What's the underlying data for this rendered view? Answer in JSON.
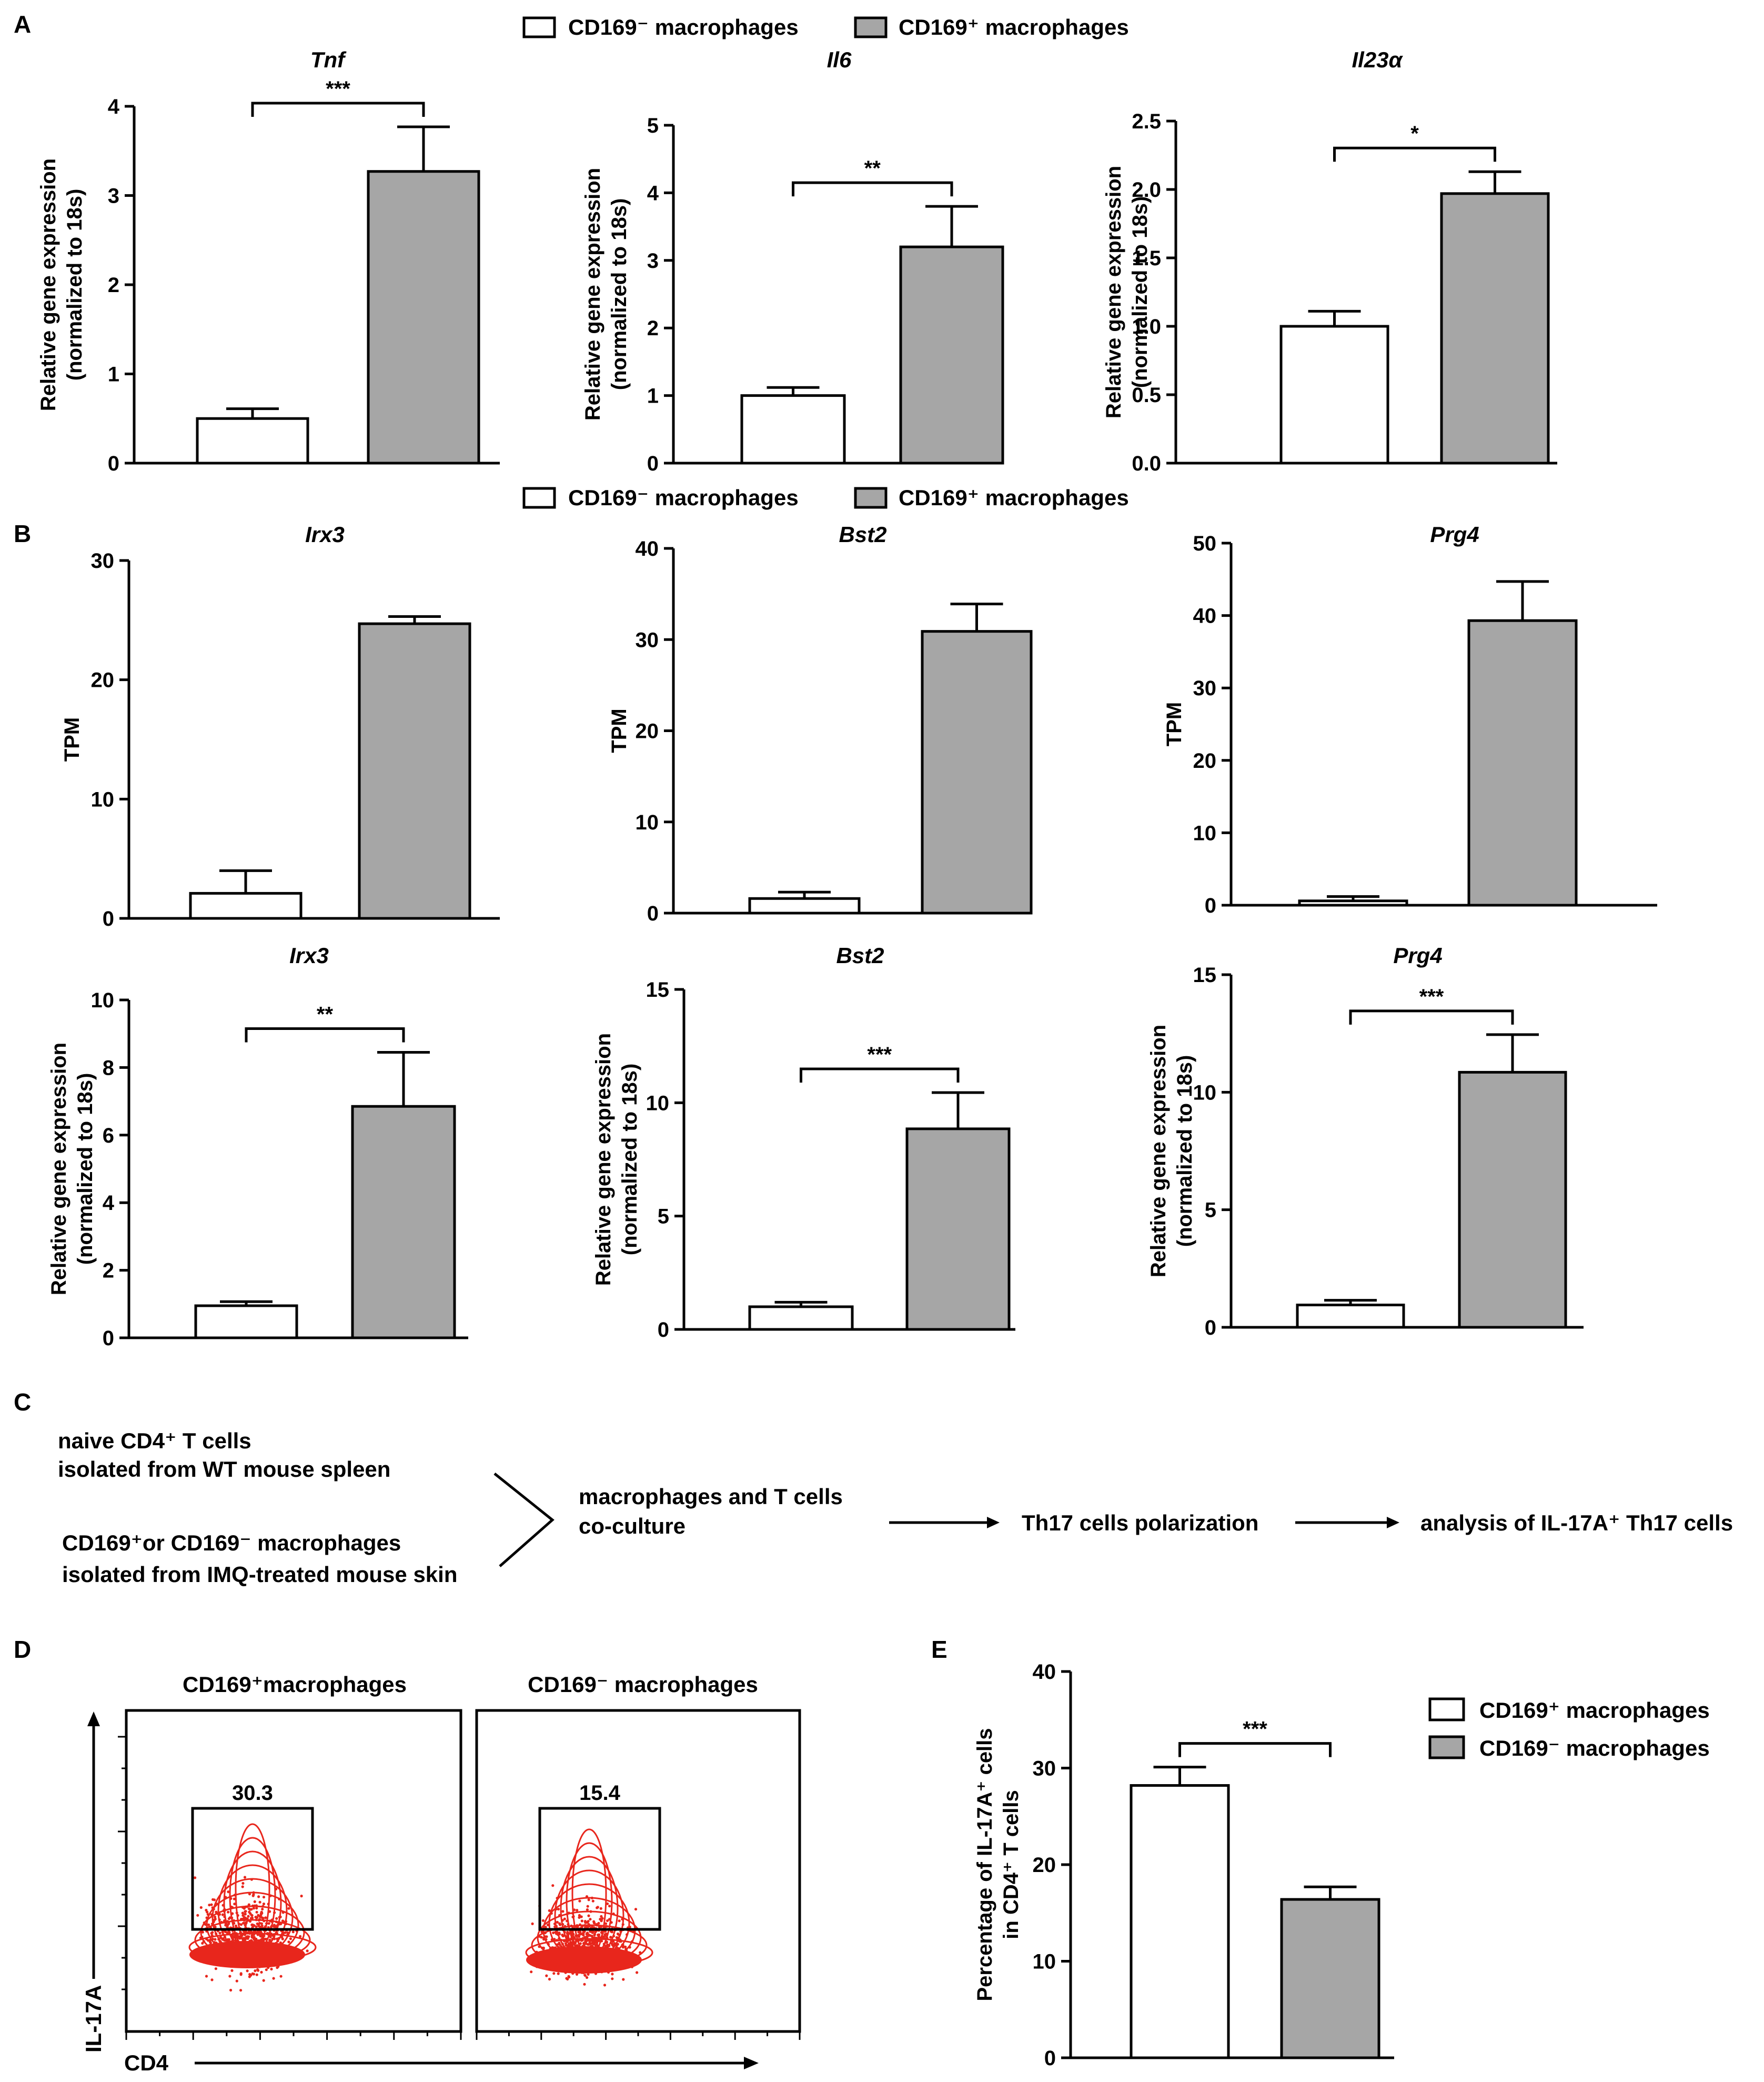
{
  "colors": {
    "bar_neg": "#ffffff",
    "bar_pos": "#a6a6a6",
    "flow_red": "#e8261c",
    "stroke": "#000000"
  },
  "legend_top": {
    "neg": "CD169⁻ macrophages",
    "pos": "CD169⁺ macrophages"
  },
  "legend_b": {
    "neg": "CD169⁻ macrophages",
    "pos": "CD169⁺ macrophages"
  },
  "panel_labels": {
    "a": "A",
    "b": "B",
    "c": "C",
    "d": "D",
    "e": "E"
  },
  "chart_data": [
    {
      "id": "a-tnf",
      "type": "bar",
      "title": "Tnf",
      "ylabel": [
        "Relative gene expression",
        "(normalized to 18s)"
      ],
      "ylim": [
        0,
        4
      ],
      "ticks": [
        "0",
        "1",
        "2",
        "3",
        "4"
      ],
      "categories": [
        "CD169⁻ macrophages",
        "CD169⁺ macrophages"
      ],
      "values": [
        0.5,
        3.27
      ],
      "errors": [
        0.11,
        0.5
      ],
      "significance": "***"
    },
    {
      "id": "a-il6",
      "type": "bar",
      "title": "Il6",
      "ylabel": [
        "Relative gene expression",
        "(normalized to 18s)"
      ],
      "ylim": [
        0,
        5
      ],
      "ticks": [
        "0",
        "1",
        "2",
        "3",
        "4",
        "5"
      ],
      "categories": [
        "CD169⁻ macrophages",
        "CD169⁺ macrophages"
      ],
      "values": [
        1.0,
        3.2
      ],
      "errors": [
        0.12,
        0.6
      ],
      "significance": "**"
    },
    {
      "id": "a-il23",
      "type": "bar",
      "title": "Il23α",
      "ylabel": [
        "Relative gene expression",
        "(normalized to 18s)"
      ],
      "ylim": [
        0,
        2.5
      ],
      "ticks": [
        "0.0",
        "0.5",
        "1.0",
        "1.5",
        "2.0",
        "2.5"
      ],
      "categories": [
        "CD169⁻ macrophages",
        "CD169⁺ macrophages"
      ],
      "values": [
        1.0,
        1.97
      ],
      "errors": [
        0.11,
        0.16
      ],
      "significance": "*"
    },
    {
      "id": "b-irx3-tpm",
      "type": "bar",
      "title": "Irx3",
      "ylabel": [
        "TPM"
      ],
      "ylim": [
        0,
        30
      ],
      "ticks": [
        "0",
        "10",
        "20",
        "30"
      ],
      "categories": [
        "CD169⁻ macrophages",
        "CD169⁺ macrophages"
      ],
      "values": [
        2.1,
        24.7
      ],
      "errors": [
        1.9,
        0.6
      ],
      "significance": ""
    },
    {
      "id": "b-bst2-tpm",
      "type": "bar",
      "title": "Bst2",
      "ylabel": [
        "TPM"
      ],
      "ylim": [
        0,
        40
      ],
      "ticks": [
        "0",
        "10",
        "20",
        "30",
        "40"
      ],
      "categories": [
        "CD169⁻ macrophages",
        "CD169⁺ macrophages"
      ],
      "values": [
        1.6,
        30.9
      ],
      "errors": [
        0.7,
        3.0
      ],
      "significance": ""
    },
    {
      "id": "b-prg4-tpm",
      "type": "bar",
      "title": "Prg4",
      "ylabel": [
        "TPM"
      ],
      "ylim": [
        0,
        50
      ],
      "ticks": [
        "0",
        "10",
        "20",
        "30",
        "40",
        "50"
      ],
      "categories": [
        "CD169⁻ macrophages",
        "CD169⁺ macrophages"
      ],
      "values": [
        0.6,
        39.3
      ],
      "errors": [
        0.6,
        5.4
      ],
      "significance": ""
    },
    {
      "id": "b-irx3-rel",
      "type": "bar",
      "title": "Irx3",
      "ylabel": [
        "Relative gene expression",
        "(normalized to 18s)"
      ],
      "ylim": [
        0,
        10
      ],
      "ticks": [
        "0",
        "2",
        "4",
        "6",
        "8",
        "10"
      ],
      "categories": [
        "CD169⁻ macrophages",
        "CD169⁺ macrophages"
      ],
      "values": [
        0.95,
        6.85
      ],
      "errors": [
        0.12,
        1.6
      ],
      "significance": "**"
    },
    {
      "id": "b-bst2-rel",
      "type": "bar",
      "title": "Bst2",
      "ylabel": [
        "Relative gene expression",
        "(normalized to 18s)"
      ],
      "ylim": [
        0,
        15
      ],
      "ticks": [
        "0",
        "5",
        "10",
        "15"
      ],
      "categories": [
        "CD169⁻ macrophages",
        "CD169⁺ macrophages"
      ],
      "values": [
        1.0,
        8.85
      ],
      "errors": [
        0.2,
        1.6
      ],
      "significance": "***"
    },
    {
      "id": "b-prg4-rel",
      "type": "bar",
      "title": "Prg4",
      "ylabel": [
        "Relative gene expression",
        "(normalized to 18s)"
      ],
      "ylim": [
        0,
        15
      ],
      "ticks": [
        "0",
        "5",
        "10",
        "15"
      ],
      "categories": [
        "CD169⁻ macrophages",
        "CD169⁺ macrophages"
      ],
      "values": [
        0.95,
        10.85
      ],
      "errors": [
        0.2,
        1.6
      ],
      "significance": "***"
    },
    {
      "id": "e-il17",
      "type": "bar",
      "title": "",
      "ylabel": [
        "Percentage of IL-17A⁺ cells",
        "in CD4⁺ T cells"
      ],
      "ylim": [
        0,
        40
      ],
      "ticks": [
        "0",
        "10",
        "20",
        "30",
        "40"
      ],
      "categories": [
        "CD169⁺ macrophages",
        "CD169⁻ macrophages"
      ],
      "values": [
        28.2,
        16.4
      ],
      "errors": [
        1.9,
        1.3
      ],
      "significance": "***",
      "legend": [
        "CD169⁺ macrophages",
        "CD169⁻ macrophages"
      ]
    }
  ],
  "flow_c": {
    "box1_line1": "naive CD4⁺ T cells",
    "box1_line2": "isolated from WT mouse spleen",
    "box2_line1": "CD169⁺or CD169⁻ macrophages",
    "box2_line2": "isolated from IMQ-treated mouse skin",
    "step_line1": "macrophages and T cells",
    "step_line2": "co-culture",
    "step2": "Th17 cells polarization",
    "step3": "analysis of IL-17A⁺ Th17 cells"
  },
  "flow_d": {
    "plots": [
      {
        "title": "CD169⁺macrophages",
        "gate_value": "30.3"
      },
      {
        "title": "CD169⁻ macrophages",
        "gate_value": "15.4"
      }
    ],
    "xaxis": "CD4",
    "yaxis": "IL-17A"
  }
}
